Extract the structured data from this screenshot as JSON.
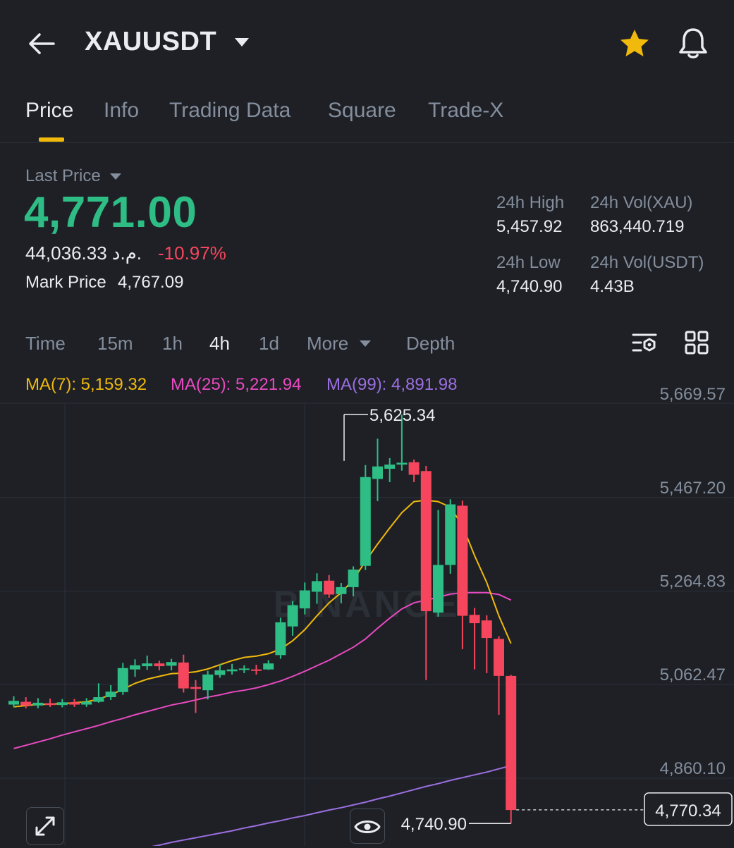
{
  "header": {
    "title": "XAUUSDT",
    "starred": true,
    "accent_color": "#f0b90b"
  },
  "tabs": [
    {
      "label": "Price",
      "active": true
    },
    {
      "label": "Info",
      "active": false
    },
    {
      "label": "Trading Data",
      "active": false
    },
    {
      "label": "Square",
      "active": false
    },
    {
      "label": "Trade-X",
      "active": false
    }
  ],
  "price": {
    "last_price_label": "Last Price",
    "last_price": "4,771.00",
    "fiat_value": "44,036.33 م.د.",
    "change_pct": "-10.97%",
    "mark_price_label": "Mark Price",
    "mark_price": "4,767.09",
    "up_color": "#2ebd85",
    "down_color": "#f6465d"
  },
  "stats": {
    "high_label": "24h High",
    "high_value": "5,457.92",
    "vol_base_label": "24h Vol(XAU)",
    "vol_base_value": "863,440.719",
    "low_label": "24h Low",
    "low_value": "4,740.90",
    "vol_quote_label": "24h Vol(USDT)",
    "vol_quote_value": "4.43B"
  },
  "intervals": [
    {
      "label": "Time",
      "active": false
    },
    {
      "label": "15m",
      "active": false
    },
    {
      "label": "1h",
      "active": false
    },
    {
      "label": "4h",
      "active": true
    },
    {
      "label": "1d",
      "active": false
    },
    {
      "label": "More",
      "active": false
    },
    {
      "label": "Depth",
      "active": false
    }
  ],
  "ma_legend": {
    "ma7": "MA(7): 5,159.32",
    "ma25": "MA(25): 5,221.94",
    "ma99": "MA(99): 4,891.98",
    "ma7_color": "#f0b90b",
    "ma25_color": "#e84ac0",
    "ma99_color": "#9b6fe0"
  },
  "chart_data": {
    "type": "candlestick",
    "y_ticks": [
      "5,669.57",
      "5,467.20",
      "5,264.83",
      "5,062.47",
      "4,860.10"
    ],
    "y_tick_values": [
      5669.57,
      5467.2,
      5264.83,
      5062.47,
      4860.1
    ],
    "max_label": "5,625.34",
    "max_value": 5625.34,
    "min_label": "4,740.90",
    "min_value": 4740.9,
    "current_label": "4,770.34",
    "current_value": 4770.34,
    "watermark": "BINANCE",
    "candles": [
      {
        "o": 4998,
        "c": 5006,
        "h": 5016,
        "l": 4992
      },
      {
        "o": 5004,
        "c": 4996,
        "h": 5014,
        "l": 4990
      },
      {
        "o": 4996,
        "c": 5002,
        "h": 5012,
        "l": 4990
      },
      {
        "o": 5001,
        "c": 4997,
        "h": 5011,
        "l": 4993
      },
      {
        "o": 4997,
        "c": 5003,
        "h": 5010,
        "l": 4992
      },
      {
        "o": 5003,
        "c": 4998,
        "h": 5010,
        "l": 4993
      },
      {
        "o": 4998,
        "c": 5004,
        "h": 5012,
        "l": 4993
      },
      {
        "o": 5004,
        "c": 5014,
        "h": 5044,
        "l": 5002
      },
      {
        "o": 5014,
        "c": 5026,
        "h": 5040,
        "l": 5008
      },
      {
        "o": 5025,
        "c": 5077,
        "h": 5088,
        "l": 5019
      },
      {
        "o": 5074,
        "c": 5083,
        "h": 5096,
        "l": 5058
      },
      {
        "o": 5081,
        "c": 5087,
        "h": 5104,
        "l": 5073
      },
      {
        "o": 5087,
        "c": 5081,
        "h": 5093,
        "l": 5072
      },
      {
        "o": 5082,
        "c": 5090,
        "h": 5097,
        "l": 5072
      },
      {
        "o": 5089,
        "c": 5033,
        "h": 5106,
        "l": 5024
      },
      {
        "o": 5036,
        "c": 5032,
        "h": 5051,
        "l": 4980
      },
      {
        "o": 5029,
        "c": 5063,
        "h": 5071,
        "l": 5009
      },
      {
        "o": 5062,
        "c": 5072,
        "h": 5086,
        "l": 5056
      },
      {
        "o": 5070,
        "c": 5074,
        "h": 5086,
        "l": 5063
      },
      {
        "o": 5073,
        "c": 5076,
        "h": 5083,
        "l": 5066
      },
      {
        "o": 5074,
        "c": 5072,
        "h": 5084,
        "l": 5063
      },
      {
        "o": 5074,
        "c": 5087,
        "h": 5094,
        "l": 5073
      },
      {
        "o": 5105,
        "c": 5176,
        "h": 5186,
        "l": 5097
      },
      {
        "o": 5167,
        "c": 5213,
        "h": 5222,
        "l": 5147
      },
      {
        "o": 5206,
        "c": 5245,
        "h": 5262,
        "l": 5193
      },
      {
        "o": 5242,
        "c": 5265,
        "h": 5282,
        "l": 5216
      },
      {
        "o": 5266,
        "c": 5236,
        "h": 5278,
        "l": 5229
      },
      {
        "o": 5237,
        "c": 5252,
        "h": 5261,
        "l": 5217
      },
      {
        "o": 5252,
        "c": 5290,
        "h": 5297,
        "l": 5232
      },
      {
        "o": 5298,
        "c": 5490,
        "h": 5516,
        "l": 5289
      },
      {
        "o": 5486,
        "c": 5513,
        "h": 5573,
        "l": 5438
      },
      {
        "o": 5508,
        "c": 5517,
        "h": 5531,
        "l": 5479
      },
      {
        "o": 5517,
        "c": 5521,
        "h": 5625,
        "l": 5504
      },
      {
        "o": 5522,
        "c": 5495,
        "h": 5528,
        "l": 5479
      },
      {
        "o": 5503,
        "c": 5200,
        "h": 5514,
        "l": 5051
      },
      {
        "o": 5197,
        "c": 5300,
        "h": 5419,
        "l": 5188
      },
      {
        "o": 5300,
        "c": 5431,
        "h": 5442,
        "l": 5281
      },
      {
        "o": 5428,
        "c": 5190,
        "h": 5439,
        "l": 5118
      },
      {
        "o": 5192,
        "c": 5174,
        "h": 5207,
        "l": 5074
      },
      {
        "o": 5180,
        "c": 5142,
        "h": 5191,
        "l": 5066
      },
      {
        "o": 5140,
        "c": 5060,
        "h": 5146,
        "l": 4976
      },
      {
        "o": 5060,
        "c": 4770,
        "h": 5062,
        "l": 4741
      }
    ],
    "ma7": [
      4993,
      4996,
      4998,
      4999,
      5000,
      5002,
      5004,
      5010,
      5019,
      5031,
      5044,
      5053,
      5059,
      5065,
      5066,
      5069,
      5075,
      5084,
      5093,
      5100,
      5103,
      5108,
      5118,
      5136,
      5160,
      5190,
      5218,
      5240,
      5268,
      5308,
      5345,
      5380,
      5413,
      5437,
      5440,
      5437,
      5425,
      5385,
      5320,
      5262,
      5190,
      5130
    ],
    "ma25": [
      4903,
      4910,
      4917,
      4924,
      4932,
      4939,
      4946,
      4953,
      4961,
      4968,
      4976,
      4983,
      4990,
      4997,
      5002,
      5008,
      5014,
      5019,
      5025,
      5029,
      5034,
      5041,
      5049,
      5059,
      5070,
      5082,
      5094,
      5108,
      5122,
      5140,
      5163,
      5185,
      5205,
      5218,
      5224,
      5230,
      5237,
      5240,
      5240,
      5240,
      5236,
      5224
    ],
    "ma99": [
      4630,
      4635,
      4641,
      4646,
      4652,
      4657,
      4662,
      4667,
      4672,
      4678,
      4683,
      4689,
      4694,
      4700,
      4705,
      4710,
      4715,
      4720,
      4725,
      4731,
      4736,
      4742,
      4747,
      4753,
      4758,
      4764,
      4770,
      4775,
      4781,
      4787,
      4794,
      4800,
      4807,
      4814,
      4821,
      4827,
      4834,
      4840,
      4846,
      4852,
      4859,
      4866
    ]
  }
}
